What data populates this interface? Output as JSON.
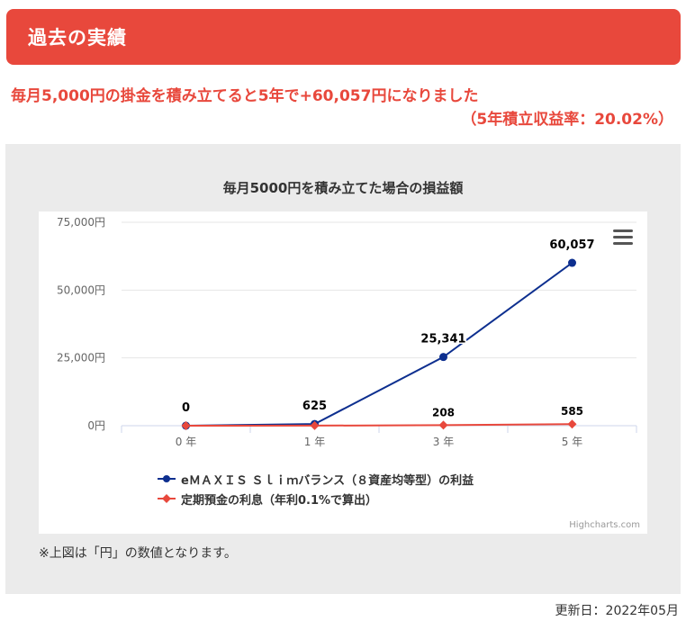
{
  "header": {
    "title": "過去の実績"
  },
  "summary": {
    "line1": "毎月5,000円の掛金を積み立てると5年で+60,057円になりました",
    "line2": "（5年積立収益率：20.02%）"
  },
  "chart_data": {
    "type": "line",
    "title": "毎月5000円を積み立てた場合の損益額",
    "categories": [
      "0 年",
      "1 年",
      "3 年",
      "5 年"
    ],
    "y_ticks": [
      "0円",
      "25,000円",
      "50,000円",
      "75,000円"
    ],
    "ylim": [
      0,
      75000
    ],
    "grid": true,
    "series": [
      {
        "name": "eＭＡＸＩＳ Ｓｌｉｍバランス（８資産均等型）の利益",
        "values": [
          0,
          625,
          25341,
          60057
        ],
        "labels": [
          "0",
          "625",
          "25,341",
          "60,057"
        ],
        "color": "#0d2f8f",
        "marker": "circle"
      },
      {
        "name": "定期預金の利息（年利0.1%で算出）",
        "values": [
          0,
          21,
          208,
          585
        ],
        "labels": [
          "",
          "",
          "208",
          "585"
        ],
        "color": "#e8483c",
        "marker": "diamond"
      }
    ],
    "legend_position": "bottom",
    "credit": "Highcharts.com"
  },
  "note": "※上図は「円」の数値となります。",
  "updated": "更新日：2022年05月"
}
